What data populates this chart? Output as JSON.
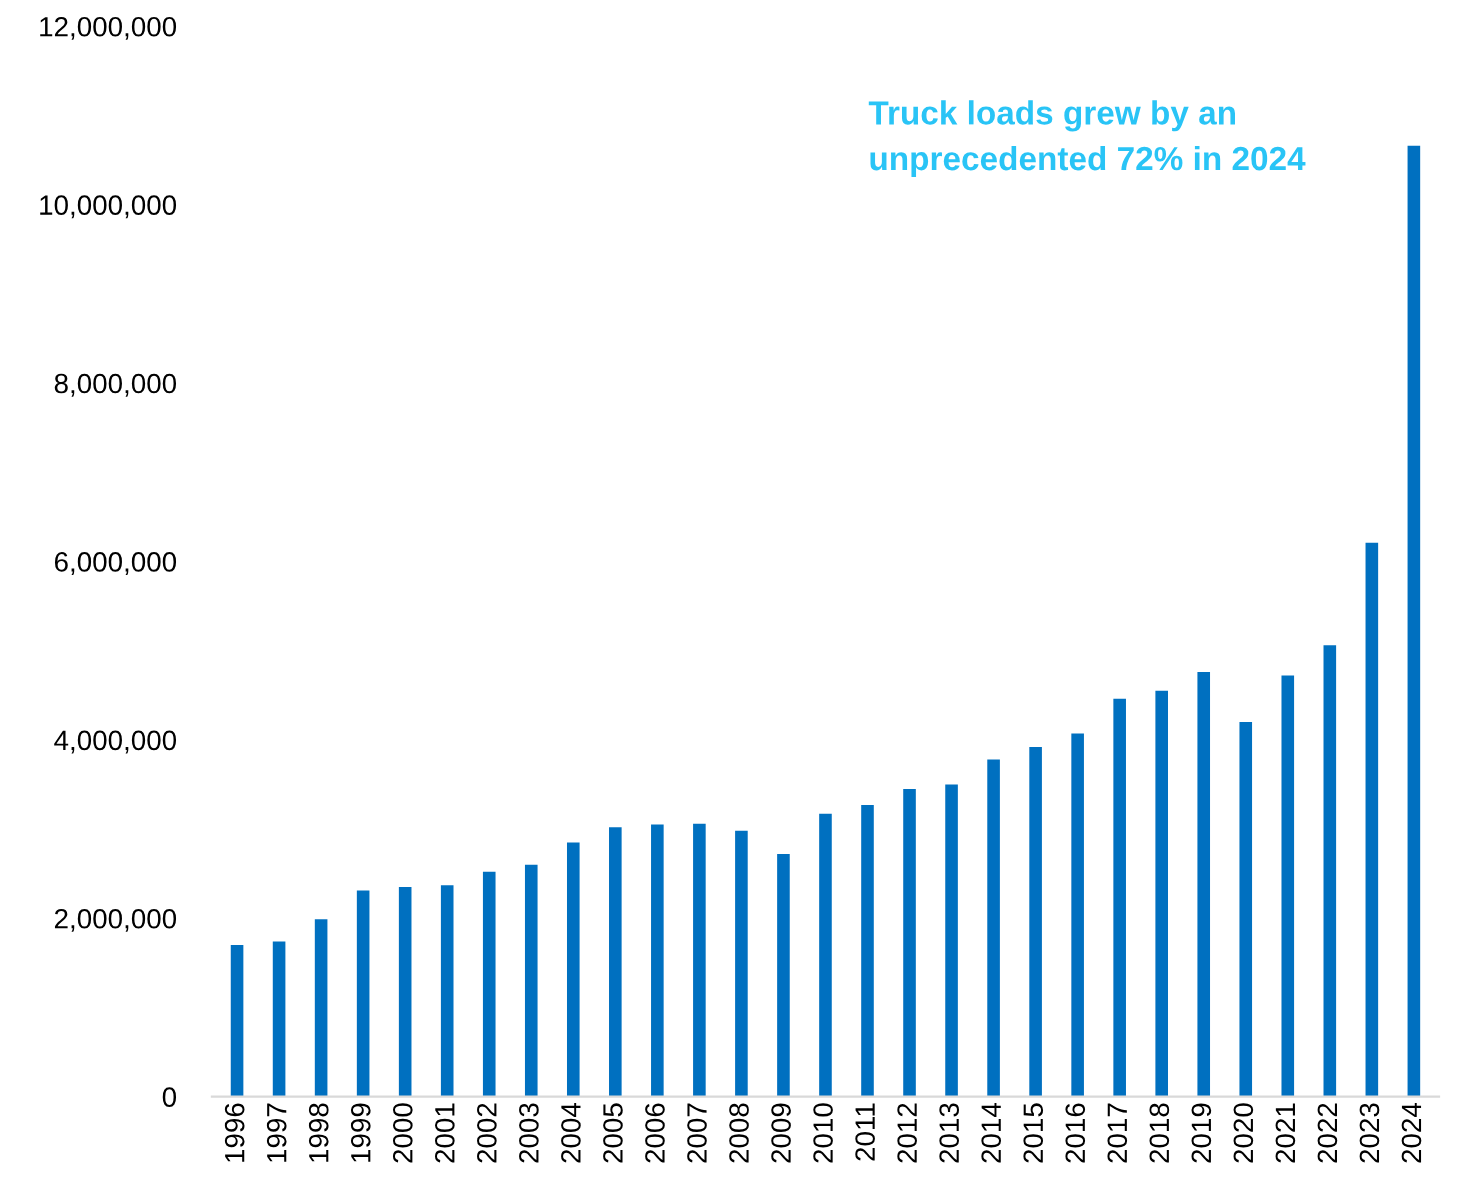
{
  "chart_data": {
    "type": "bar",
    "categories": [
      "1996",
      "1997",
      "1998",
      "1999",
      "2000",
      "2001",
      "2002",
      "2003",
      "2004",
      "2005",
      "2006",
      "2007",
      "2008",
      "2009",
      "2010",
      "2011",
      "2012",
      "2013",
      "2014",
      "2015",
      "2016",
      "2017",
      "2018",
      "2019",
      "2020",
      "2021",
      "2022",
      "2023",
      "2024"
    ],
    "values": [
      1700000,
      1740000,
      1990000,
      2310000,
      2350000,
      2370000,
      2520000,
      2600000,
      2850000,
      3020000,
      3050000,
      3060000,
      2980000,
      2720000,
      3170000,
      3270000,
      3450000,
      3500000,
      3780000,
      3920000,
      4070000,
      4460000,
      4550000,
      4760000,
      4200000,
      4720000,
      5060000,
      6210000,
      10660000
    ],
    "color": "#0070c0",
    "ylim": [
      0,
      12000000
    ],
    "yticks": [
      0,
      {
        "value": 2000000,
        "label": "2,000,000"
      },
      {
        "value": 4000000,
        "label": "4,000,000"
      },
      {
        "value": 6000000,
        "label": "6,000,000"
      },
      {
        "value": 8000000,
        "label": "8,000,000"
      },
      {
        "value": 10000000,
        "label": "10,000,000"
      },
      {
        "value": 12000000,
        "label": "12,000,000"
      }
    ],
    "annotations": [
      "Truck loads grew by an\nunprecedented 72% in 2024"
    ],
    "grid": false,
    "legend": false
  }
}
